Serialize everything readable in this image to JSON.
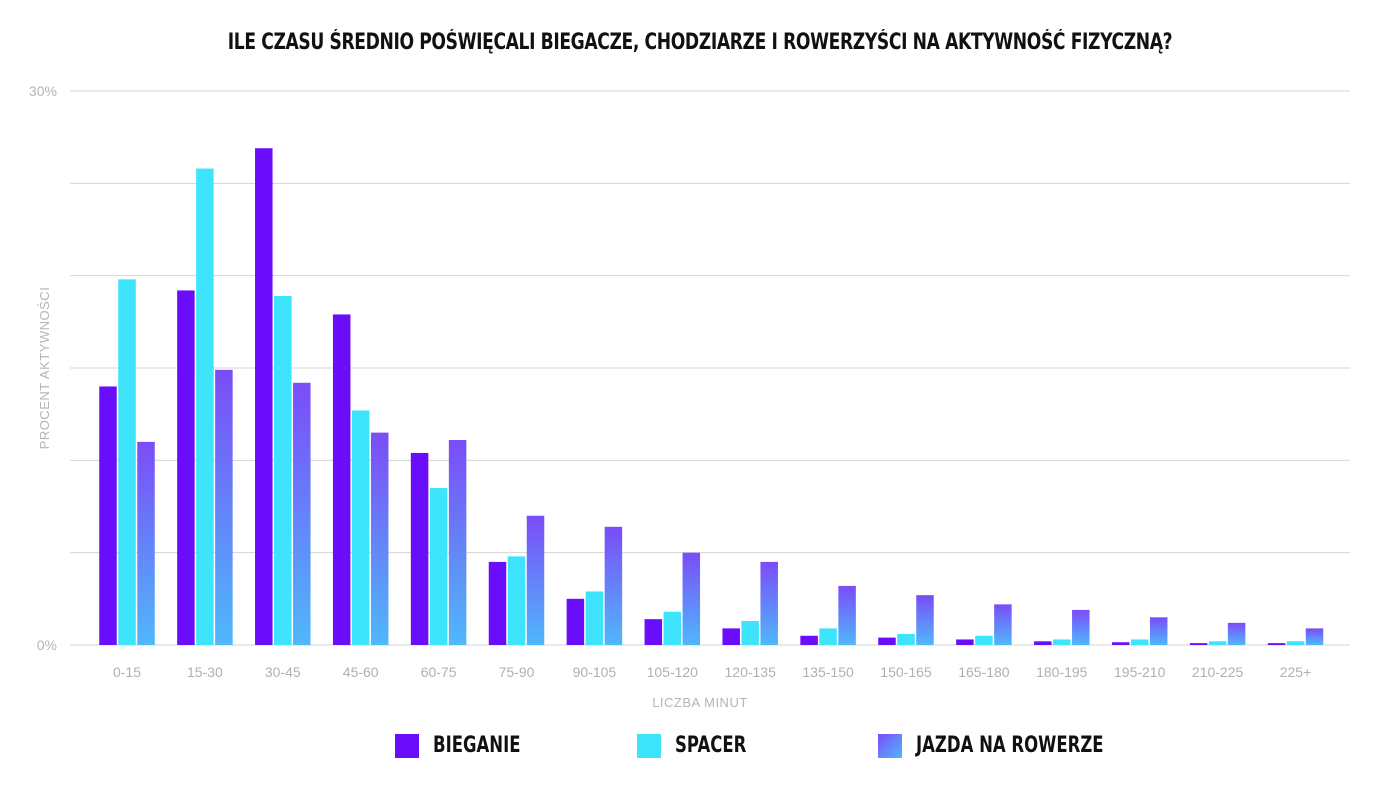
{
  "chart_data": {
    "type": "bar",
    "title": "ILE CZASU ŚREDNIO POŚWIĘCALI BIEGACZE, CHODZIARZE I ROWERZYŚCI NA AKTYWNOŚĆ FIZYCZNĄ?",
    "xlabel": "LICZBA MINUT",
    "ylabel": "PROCENT AKTYWNOŚCI",
    "ylim": [
      0,
      30
    ],
    "yticks": [
      0,
      5,
      10,
      15,
      20,
      25,
      30
    ],
    "ytick_labels": {
      "0": "0%",
      "30": "30%"
    },
    "grid": true,
    "legend": "bottom",
    "categories": [
      "0-15",
      "15-30",
      "30-45",
      "45-60",
      "60-75",
      "75-90",
      "90-105",
      "105-120",
      "120-135",
      "135-150",
      "150-165",
      "165-180",
      "180-195",
      "195-210",
      "210-225",
      "225+"
    ],
    "series": [
      {
        "name": "BIEGANIE",
        "color": "#6a0dfa",
        "values": [
          14.0,
          19.2,
          26.9,
          17.9,
          10.4,
          4.5,
          2.5,
          1.4,
          0.9,
          0.5,
          0.4,
          0.3,
          0.2,
          0.15,
          0.1,
          0.1
        ]
      },
      {
        "name": "SPACER",
        "color": "#3ee4fb",
        "values": [
          19.8,
          25.8,
          18.9,
          12.7,
          8.5,
          4.8,
          2.9,
          1.8,
          1.3,
          0.9,
          0.6,
          0.5,
          0.3,
          0.3,
          0.2,
          0.2
        ]
      },
      {
        "name": "JAZDA NA ROWERZE",
        "color": "#7b4cf8",
        "color_bottom": "#4fb8fb",
        "values": [
          11.0,
          14.9,
          14.2,
          11.5,
          11.1,
          7.0,
          6.4,
          5.0,
          4.5,
          3.2,
          2.7,
          2.2,
          1.9,
          1.5,
          1.2,
          0.9
        ]
      }
    ]
  }
}
